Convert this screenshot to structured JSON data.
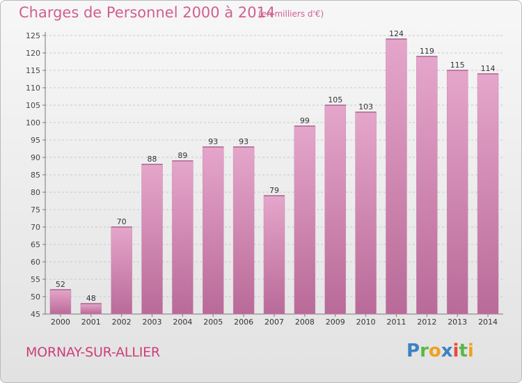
{
  "header": {
    "title": "Charges de Personnel 2000 à 2014",
    "subtitle": "(en milliers d'€)"
  },
  "footer": {
    "location": "MORNAY-SUR-ALLIER",
    "logo_text": "Proxiti",
    "logo_letters": [
      {
        "ch": "P",
        "color": "#3b82c4"
      },
      {
        "ch": "r",
        "color": "#58b947"
      },
      {
        "ch": "o",
        "color": "#f0a020"
      },
      {
        "ch": "x",
        "color": "#3b82c4"
      },
      {
        "ch": "i",
        "color": "#e84a3b"
      },
      {
        "ch": "t",
        "color": "#58b947"
      },
      {
        "ch": "i",
        "color": "#f0a020"
      }
    ]
  },
  "chart_data": {
    "type": "bar",
    "title": "Charges de Personnel 2000 à 2014",
    "subtitle": "(en milliers d'€)",
    "xlabel": "",
    "ylabel": "",
    "categories": [
      "2000",
      "2001",
      "2002",
      "2003",
      "2004",
      "2005",
      "2006",
      "2007",
      "2008",
      "2009",
      "2010",
      "2011",
      "2012",
      "2013",
      "2014"
    ],
    "values": [
      52,
      48,
      70,
      88,
      89,
      93,
      93,
      79,
      99,
      105,
      103,
      124,
      119,
      115,
      114
    ],
    "ylim": [
      45,
      125
    ],
    "yticks": [
      45,
      50,
      55,
      60,
      65,
      70,
      75,
      80,
      85,
      90,
      95,
      100,
      105,
      110,
      115,
      120,
      125
    ],
    "grid": "horizontal dashed",
    "legend": "none",
    "bar_color_top": "#e5a6cb",
    "bar_color_bottom": "#b96a98"
  }
}
